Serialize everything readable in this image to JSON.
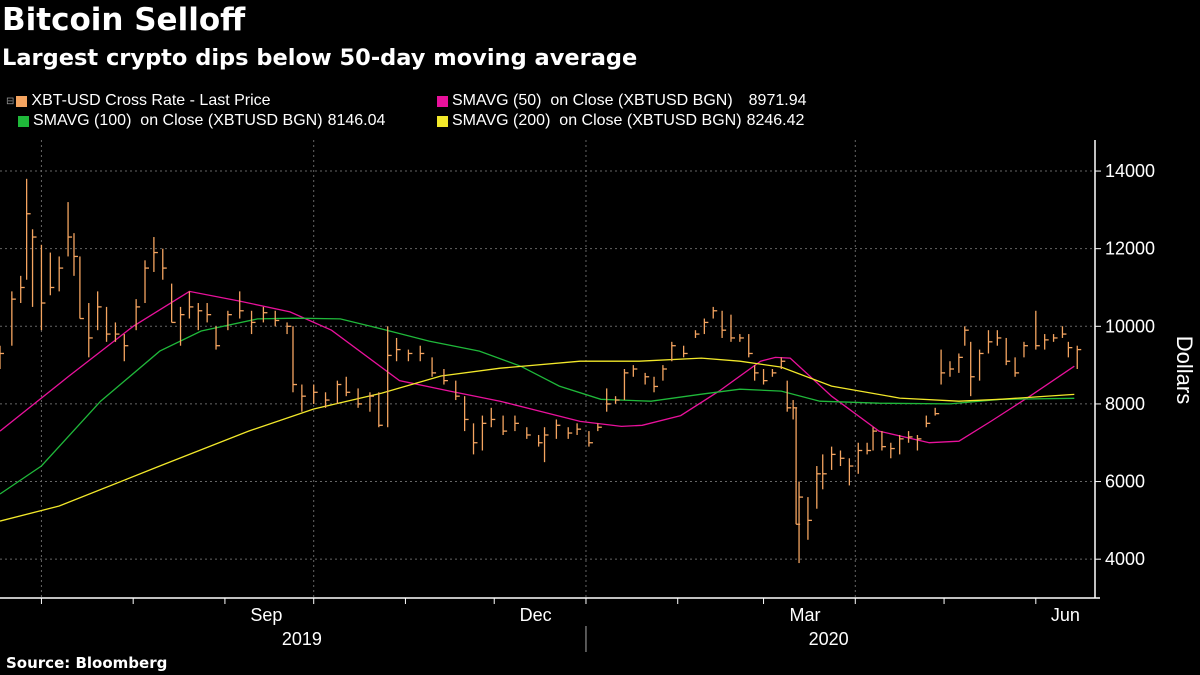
{
  "header": {
    "title": "Bitcoin Selloff",
    "subtitle": "Largest crypto dips below 50-day moving average"
  },
  "legend": [
    {
      "label": "XBT-USD Cross Rate - Last Price",
      "value": "",
      "color": "#f4a460"
    },
    {
      "label": "SMAVG (50)  on Close (XBTUSD BGN)",
      "value": "8971.94",
      "color": "#e8119b"
    },
    {
      "label": "SMAVG (100)  on Close (XBTUSD BGN)",
      "value": "8146.04",
      "color": "#1fb83a"
    },
    {
      "label": "SMAVG (200)  on Close (XBTUSD BGN)",
      "value": "8246.42",
      "color": "#f2e82a"
    }
  ],
  "footer": {
    "source": "Source: Bloomberg"
  },
  "chart_data": {
    "type": "line",
    "subtype": "ohlc-bars-with-moving-averages",
    "title": "Bitcoin Selloff",
    "subtitle": "Largest crypto dips below 50-day moving average",
    "ylabel": "Dollars",
    "y_axis_side": "right",
    "ylim": [
      3000,
      14800
    ],
    "yticks": [
      4000,
      6000,
      8000,
      10000,
      12000,
      14000
    ],
    "xlim": [
      "2019-06-17",
      "2020-06-21"
    ],
    "xtick_labels": [
      {
        "label": "Sep",
        "date": "2019-09-15"
      },
      {
        "label": "Dec",
        "date": "2019-12-15"
      },
      {
        "label": "Mar",
        "date": "2020-03-15"
      },
      {
        "label": "Jun",
        "date": "2020-06-11"
      }
    ],
    "year_labels": [
      {
        "label": "2019",
        "date": "2019-09-27"
      },
      {
        "label": "2020",
        "date": "2020-03-23"
      }
    ],
    "grid": true,
    "legend_position": "top",
    "colors": {
      "price": "#f4a460",
      "sma50": "#e8119b",
      "sma100": "#1fb83a",
      "sma200": "#f2e82a",
      "grid": "#666666"
    },
    "price_bars_columns": [
      "date",
      "low",
      "high",
      "close"
    ],
    "price_bars": [
      [
        "2019-06-17",
        8900,
        9500,
        9300
      ],
      [
        "2019-06-21",
        9500,
        10900,
        10700
      ],
      [
        "2019-06-24",
        10600,
        11300,
        11000
      ],
      [
        "2019-06-26",
        11200,
        13800,
        12900
      ],
      [
        "2019-06-28",
        10500,
        12500,
        12300
      ],
      [
        "2019-07-01",
        9900,
        12100,
        10600
      ],
      [
        "2019-07-04",
        10800,
        11900,
        11000
      ],
      [
        "2019-07-07",
        10900,
        11800,
        11500
      ],
      [
        "2019-07-10",
        11800,
        13200,
        12300
      ],
      [
        "2019-07-12",
        11300,
        12400,
        11800
      ],
      [
        "2019-07-14",
        10200,
        11800,
        10200
      ],
      [
        "2019-07-17",
        9200,
        10600,
        9700
      ],
      [
        "2019-07-20",
        9900,
        10900,
        10500
      ],
      [
        "2019-07-23",
        9600,
        10500,
        9800
      ],
      [
        "2019-07-26",
        9600,
        10100,
        9800
      ],
      [
        "2019-07-29",
        9100,
        9800,
        9500
      ],
      [
        "2019-08-02",
        9900,
        10700,
        10500
      ],
      [
        "2019-08-05",
        10600,
        11700,
        11500
      ],
      [
        "2019-08-08",
        11400,
        12300,
        11900
      ],
      [
        "2019-08-11",
        11200,
        12000,
        11500
      ],
      [
        "2019-08-14",
        10100,
        11100,
        10100
      ],
      [
        "2019-08-17",
        9500,
        10500,
        10300
      ],
      [
        "2019-08-20",
        10200,
        10900,
        10500
      ],
      [
        "2019-08-23",
        9900,
        10600,
        10400
      ],
      [
        "2019-08-26",
        10100,
        10600,
        10300
      ],
      [
        "2019-08-29",
        9400,
        10000,
        9500
      ],
      [
        "2019-09-02",
        9900,
        10400,
        10300
      ],
      [
        "2019-09-06",
        10200,
        10900,
        10400
      ],
      [
        "2019-09-10",
        9800,
        10400,
        10100
      ],
      [
        "2019-09-14",
        10100,
        10500,
        10350
      ],
      [
        "2019-09-18",
        10000,
        10400,
        10150
      ],
      [
        "2019-09-22",
        9800,
        10100,
        10000
      ],
      [
        "2019-09-24",
        8300,
        10000,
        8500
      ],
      [
        "2019-09-27",
        7800,
        8500,
        8200
      ],
      [
        "2019-10-01",
        8000,
        8500,
        8300
      ],
      [
        "2019-10-05",
        7900,
        8300,
        8100
      ],
      [
        "2019-10-09",
        8000,
        8600,
        8500
      ],
      [
        "2019-10-12",
        8200,
        8700,
        8300
      ],
      [
        "2019-10-16",
        7900,
        8400,
        8000
      ],
      [
        "2019-10-20",
        7800,
        8300,
        8200
      ],
      [
        "2019-10-23",
        7400,
        8300,
        7450
      ],
      [
        "2019-10-26",
        7400,
        10000,
        9250
      ],
      [
        "2019-10-29",
        9100,
        9700,
        9400
      ],
      [
        "2019-11-02",
        9100,
        9400,
        9300
      ],
      [
        "2019-11-06",
        9100,
        9500,
        9300
      ],
      [
        "2019-11-10",
        8700,
        9200,
        8800
      ],
      [
        "2019-11-14",
        8500,
        8900,
        8600
      ],
      [
        "2019-11-18",
        8100,
        8600,
        8200
      ],
      [
        "2019-11-21",
        7300,
        8200,
        7600
      ],
      [
        "2019-11-24",
        6700,
        7500,
        7000
      ],
      [
        "2019-11-27",
        6800,
        7700,
        7500
      ],
      [
        "2019-11-30",
        7400,
        7900,
        7600
      ],
      [
        "2019-12-04",
        7200,
        7700,
        7300
      ],
      [
        "2019-12-08",
        7300,
        7700,
        7500
      ],
      [
        "2019-12-12",
        7100,
        7400,
        7200
      ],
      [
        "2019-12-16",
        6900,
        7200,
        7000
      ],
      [
        "2019-12-18",
        6500,
        7400,
        7200
      ],
      [
        "2019-12-22",
        7100,
        7600,
        7450
      ],
      [
        "2019-12-26",
        7100,
        7400,
        7250
      ],
      [
        "2019-12-29",
        7200,
        7500,
        7350
      ],
      [
        "2020-01-02",
        6900,
        7300,
        7000
      ],
      [
        "2020-01-05",
        7300,
        7500,
        7400
      ],
      [
        "2020-01-08",
        7800,
        8400,
        8000
      ],
      [
        "2020-01-11",
        8000,
        8200,
        8100
      ],
      [
        "2020-01-14",
        8100,
        8900,
        8800
      ],
      [
        "2020-01-17",
        8700,
        9000,
        8900
      ],
      [
        "2020-01-21",
        8500,
        8800,
        8700
      ],
      [
        "2020-01-24",
        8300,
        8700,
        8450
      ],
      [
        "2020-01-27",
        8600,
        9000,
        8900
      ],
      [
        "2020-01-30",
        9100,
        9600,
        9500
      ],
      [
        "2020-02-03",
        9200,
        9500,
        9300
      ],
      [
        "2020-02-07",
        9700,
        9900,
        9800
      ],
      [
        "2020-02-10",
        9800,
        10200,
        10100
      ],
      [
        "2020-02-13",
        10200,
        10500,
        10400
      ],
      [
        "2020-02-16",
        9700,
        10400,
        9900
      ],
      [
        "2020-02-19",
        9600,
        10300,
        9700
      ],
      [
        "2020-02-22",
        9600,
        9800,
        9700
      ],
      [
        "2020-02-25",
        9200,
        9800,
        9300
      ],
      [
        "2020-02-27",
        8600,
        9000,
        8800
      ],
      [
        "2020-03-01",
        8500,
        8900,
        8600
      ],
      [
        "2020-03-04",
        8700,
        8900,
        8800
      ],
      [
        "2020-03-07",
        8900,
        9200,
        9100
      ],
      [
        "2020-03-09",
        7800,
        8600,
        7900
      ],
      [
        "2020-03-11",
        7600,
        8100,
        7900
      ],
      [
        "2020-03-12",
        4900,
        7900,
        4900
      ],
      [
        "2020-03-13",
        3900,
        6000,
        5600
      ],
      [
        "2020-03-16",
        4500,
        5600,
        5000
      ],
      [
        "2020-03-19",
        5300,
        6400,
        6200
      ],
      [
        "2020-03-21",
        5800,
        6700,
        6200
      ],
      [
        "2020-03-24",
        6300,
        6900,
        6700
      ],
      [
        "2020-03-27",
        6400,
        6800,
        6600
      ],
      [
        "2020-03-30",
        5900,
        6600,
        6400
      ],
      [
        "2020-04-02",
        6200,
        7000,
        6800
      ],
      [
        "2020-04-05",
        6700,
        7000,
        6800
      ],
      [
        "2020-04-07",
        6800,
        7400,
        7300
      ],
      [
        "2020-04-10",
        6800,
        7300,
        6900
      ],
      [
        "2020-04-13",
        6600,
        7000,
        6850
      ],
      [
        "2020-04-16",
        6700,
        7200,
        7100
      ],
      [
        "2020-04-19",
        7000,
        7300,
        7150
      ],
      [
        "2020-04-22",
        6800,
        7200,
        7100
      ],
      [
        "2020-04-25",
        7400,
        7700,
        7500
      ],
      [
        "2020-04-28",
        7700,
        7900,
        7750
      ],
      [
        "2020-04-30",
        8500,
        9400,
        8800
      ],
      [
        "2020-05-03",
        8700,
        9100,
        8900
      ],
      [
        "2020-05-06",
        8800,
        9300,
        9200
      ],
      [
        "2020-05-08",
        9500,
        10000,
        9900
      ],
      [
        "2020-05-10",
        8200,
        9600,
        8700
      ],
      [
        "2020-05-13",
        8600,
        9400,
        9300
      ],
      [
        "2020-05-16",
        9300,
        9900,
        9600
      ],
      [
        "2020-05-19",
        9500,
        9900,
        9700
      ],
      [
        "2020-05-22",
        9000,
        9700,
        9100
      ],
      [
        "2020-05-25",
        8700,
        9200,
        8800
      ],
      [
        "2020-05-28",
        9200,
        9600,
        9500
      ],
      [
        "2020-06-01",
        9400,
        10400,
        9500
      ],
      [
        "2020-06-04",
        9400,
        9800,
        9650
      ],
      [
        "2020-06-07",
        9600,
        9800,
        9700
      ],
      [
        "2020-06-10",
        9700,
        10000,
        9800
      ],
      [
        "2020-06-12",
        9200,
        9600,
        9450
      ],
      [
        "2020-06-15",
        8900,
        9500,
        9400
      ]
    ],
    "series": [
      {
        "name": "SMAVG (50)  on Close (XBTUSD BGN)",
        "key": "sma50",
        "last": 8971.94,
        "points": [
          [
            "2019-06-17",
            7300
          ],
          [
            "2019-07-10",
            8700
          ],
          [
            "2019-08-01",
            10000
          ],
          [
            "2019-08-20",
            10900
          ],
          [
            "2019-09-06",
            10650
          ],
          [
            "2019-09-23",
            10370
          ],
          [
            "2019-10-07",
            9900
          ],
          [
            "2019-10-30",
            8600
          ],
          [
            "2019-11-16",
            8330
          ],
          [
            "2019-12-03",
            8070
          ],
          [
            "2019-12-30",
            7550
          ],
          [
            "2020-01-13",
            7420
          ],
          [
            "2020-01-20",
            7450
          ],
          [
            "2020-02-02",
            7700
          ],
          [
            "2020-02-15",
            8330
          ],
          [
            "2020-02-29",
            9100
          ],
          [
            "2020-03-05",
            9200
          ],
          [
            "2020-03-10",
            9180
          ],
          [
            "2020-03-24",
            8200
          ],
          [
            "2020-04-09",
            7300
          ],
          [
            "2020-04-26",
            7000
          ],
          [
            "2020-05-06",
            7040
          ],
          [
            "2020-05-17",
            7560
          ],
          [
            "2020-05-30",
            8200
          ],
          [
            "2020-06-14",
            8972
          ]
        ]
      },
      {
        "name": "SMAVG (100)  on Close (XBTUSD BGN)",
        "key": "sma100",
        "last": 8146.04,
        "points": [
          [
            "2019-06-17",
            5680
          ],
          [
            "2019-07-01",
            6400
          ],
          [
            "2019-07-21",
            8070
          ],
          [
            "2019-08-10",
            9360
          ],
          [
            "2019-08-24",
            9880
          ],
          [
            "2019-09-12",
            10190
          ],
          [
            "2019-09-25",
            10210
          ],
          [
            "2019-10-10",
            10190
          ],
          [
            "2019-10-24",
            9930
          ],
          [
            "2019-11-09",
            9620
          ],
          [
            "2019-11-26",
            9360
          ],
          [
            "2019-12-10",
            8970
          ],
          [
            "2019-12-23",
            8460
          ],
          [
            "2020-01-06",
            8120
          ],
          [
            "2020-01-23",
            8070
          ],
          [
            "2020-02-09",
            8250
          ],
          [
            "2020-02-22",
            8380
          ],
          [
            "2020-03-07",
            8330
          ],
          [
            "2020-03-20",
            8070
          ],
          [
            "2020-04-09",
            8020
          ],
          [
            "2020-05-03",
            8000
          ],
          [
            "2020-05-20",
            8120
          ],
          [
            "2020-06-14",
            8146
          ]
        ]
      },
      {
        "name": "SMAVG (200)  on Close (XBTUSD BGN)",
        "key": "sma200",
        "last": 8246.42,
        "points": [
          [
            "2019-06-17",
            4980
          ],
          [
            "2019-07-07",
            5370
          ],
          [
            "2019-08-10",
            6400
          ],
          [
            "2019-09-09",
            7300
          ],
          [
            "2019-10-01",
            7870
          ],
          [
            "2019-10-24",
            8280
          ],
          [
            "2019-11-13",
            8720
          ],
          [
            "2019-12-03",
            8920
          ],
          [
            "2019-12-30",
            9100
          ],
          [
            "2020-01-19",
            9100
          ],
          [
            "2020-02-09",
            9180
          ],
          [
            "2020-02-22",
            9100
          ],
          [
            "2020-03-07",
            8950
          ],
          [
            "2020-03-24",
            8460
          ],
          [
            "2020-04-16",
            8150
          ],
          [
            "2020-05-06",
            8070
          ],
          [
            "2020-05-20",
            8120
          ],
          [
            "2020-06-14",
            8246
          ]
        ]
      }
    ]
  }
}
